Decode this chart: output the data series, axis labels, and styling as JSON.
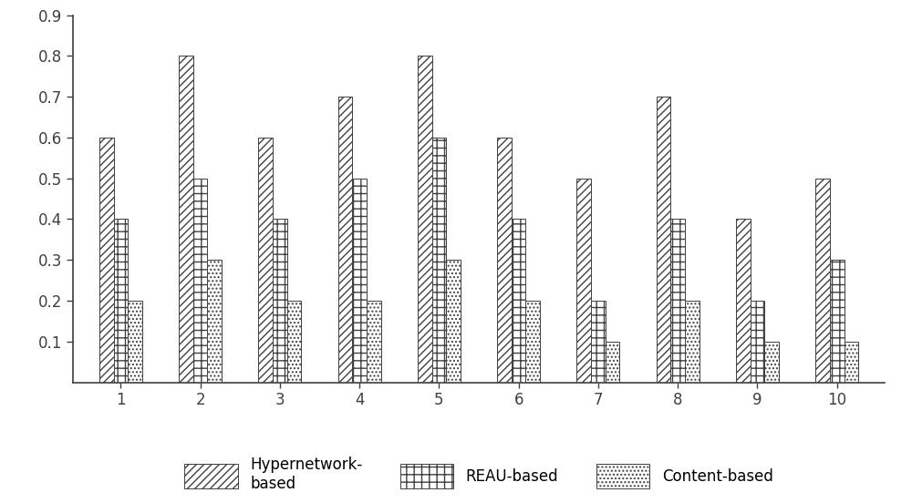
{
  "categories": [
    1,
    2,
    3,
    4,
    5,
    6,
    7,
    8,
    9,
    10
  ],
  "hypernetwork": [
    0.6,
    0.8,
    0.6,
    0.7,
    0.8,
    0.6,
    0.5,
    0.7,
    0.4,
    0.5
  ],
  "reau": [
    0.4,
    0.5,
    0.4,
    0.5,
    0.6,
    0.4,
    0.2,
    0.4,
    0.2,
    0.3
  ],
  "content": [
    0.2,
    0.3,
    0.2,
    0.2,
    0.3,
    0.2,
    0.1,
    0.2,
    0.1,
    0.1
  ],
  "ylim": [
    0,
    0.9
  ],
  "yticks": [
    0.1,
    0.2,
    0.3,
    0.4,
    0.5,
    0.6,
    0.7,
    0.8,
    0.9
  ],
  "bar_width": 0.18,
  "legend_labels": [
    "Hypernetwork-\nbased",
    "REAU-based",
    "Content-based"
  ],
  "background_color": "#ffffff",
  "edge_color": "#404040",
  "face_color_hyper": "#ffffff",
  "face_color_reau": "#ffffff",
  "face_color_content": "#ffffff",
  "hatch_hyper": "////",
  "hatch_reau": "++",
  "hatch_content": "....",
  "tick_fontsize": 12,
  "legend_fontsize": 12
}
